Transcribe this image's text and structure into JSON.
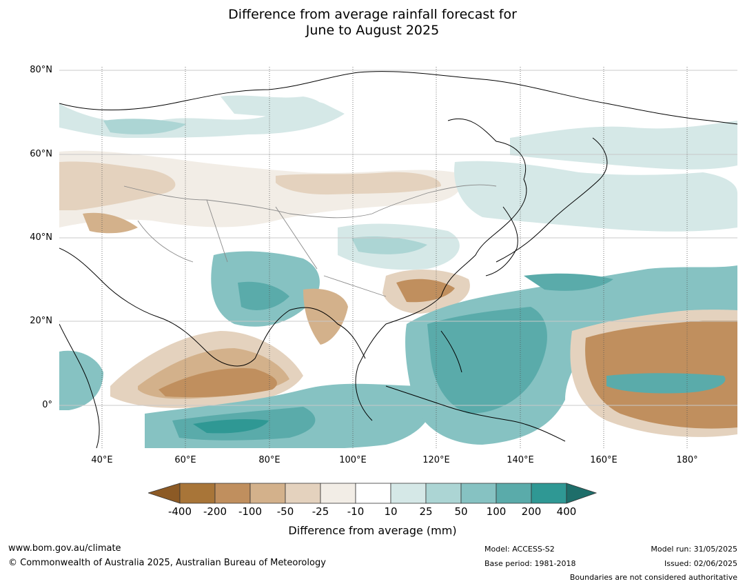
{
  "title": {
    "line1": "Difference from average rainfall forecast for",
    "line2": "June to August 2025"
  },
  "map": {
    "lat_labels": [
      "80°N",
      "60°N",
      "40°N",
      "20°N",
      "0°"
    ],
    "lon_labels": [
      "40°E",
      "60°E",
      "80°E",
      "100°E",
      "120°E",
      "140°E",
      "160°E",
      "180°"
    ],
    "colors": {
      "dry_400": "#a87538",
      "dry_200": "#c08f5e",
      "dry_100": "#d3b18b",
      "dry_50": "#e4d2be",
      "dry_25": "#f2ede6",
      "neutral": "#ffffff",
      "wet_10": "#d5e8e7",
      "wet_25": "#acd5d4",
      "wet_50": "#86c2c2",
      "wet_100": "#5aabaa",
      "wet_200": "#2f9894",
      "wet_400": "#1e6e6a",
      "dry_extreme": "#8c5a25"
    }
  },
  "colorbar": {
    "ticks": [
      "-400",
      "-200",
      "-100",
      "-50",
      "-25",
      "-10",
      "10",
      "25",
      "50",
      "100",
      "200",
      "400"
    ],
    "label": "Difference from average (mm)"
  },
  "footer": {
    "website": "www.bom.gov.au/climate",
    "copyright": "© Commonwealth of Australia 2025, Australian Bureau of Meteorology",
    "model": "Model: ACCESS-S2",
    "base_period": "Base period: 1981-2018",
    "model_run": "Model run: 31/05/2025",
    "issued": "Issued: 02/06/2025",
    "disclaimer": "Boundaries are not considered authoritative"
  }
}
